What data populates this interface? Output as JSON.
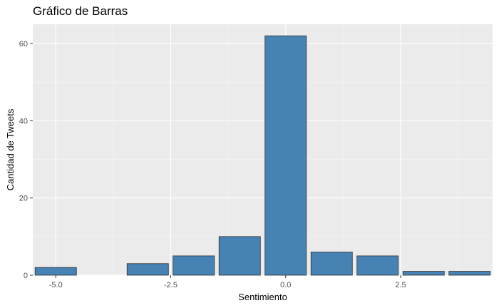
{
  "chart_data": {
    "type": "bar",
    "title": "Gráfico de Barras",
    "xlabel": "Sentimiento",
    "ylabel": "Cantidad de Tweets",
    "x": [
      -5,
      -3,
      -2,
      -1,
      0,
      1,
      2,
      3,
      4
    ],
    "values": [
      2,
      3,
      5,
      10,
      62,
      6,
      5,
      1,
      1
    ],
    "xlim": [
      -5.5,
      4.5
    ],
    "ylim": [
      0,
      65
    ],
    "x_ticks": [
      -5.0,
      -2.5,
      0.0,
      2.5
    ],
    "x_tick_labels": [
      "-5.0",
      "-2.5",
      "0.0",
      "2.5"
    ],
    "y_ticks": [
      0,
      20,
      40,
      60
    ],
    "y_tick_labels": [
      "0",
      "20",
      "40",
      "60"
    ],
    "grid": true,
    "bar_width": 0.9,
    "colors": {
      "bar_fill": "#4682B4",
      "bar_stroke": "#2f2f2f",
      "panel_bg": "#EBEBEB",
      "grid_major": "#FFFFFF",
      "grid_minor": "#F5F5F5",
      "tick_color": "#333333"
    }
  }
}
